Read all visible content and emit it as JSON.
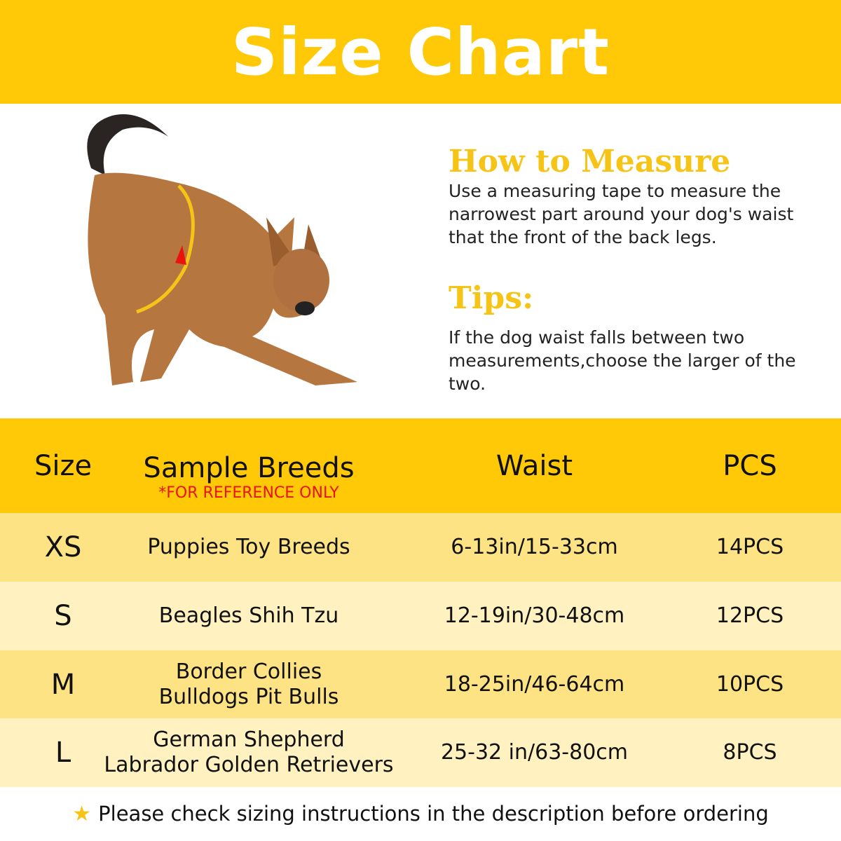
{
  "title": "Size Chart",
  "how_to_measure": {
    "heading": "How to Measure",
    "text": "Use a measuring tape to measure the narrowest part around your dog's waist that the front of the back legs."
  },
  "tips": {
    "heading": "Tips:",
    "text": "If the dog waist falls between two measurements,choose the larger of the two."
  },
  "table": {
    "headers": {
      "size": "Size",
      "breeds": "Sample Breeds",
      "breeds_note": "*FOR REFERENCE ONLY",
      "waist": "Waist",
      "pcs": "PCS"
    },
    "rows": [
      {
        "size": "XS",
        "breeds": [
          "Puppies Toy Breeds"
        ],
        "waist": "6-13in/15-33cm",
        "pcs": "14PCS",
        "color": "#FEE384"
      },
      {
        "size": "S",
        "breeds": [
          "Beagles Shih Tzu"
        ],
        "waist": "12-19in/30-48cm",
        "pcs": "12PCS",
        "color": "#FFF2C0"
      },
      {
        "size": "M",
        "breeds": [
          "Border Collies",
          "Bulldogs Pit Bulls"
        ],
        "waist": "18-25in/46-64cm",
        "pcs": "10PCS",
        "color": "#FEE384"
      },
      {
        "size": "L",
        "breeds": [
          "German Shepherd",
          "Labrador  Golden Retrievers"
        ],
        "waist": "25-32 in/63-80cm",
        "pcs": "8PCS",
        "color": "#FFF2C0"
      }
    ]
  },
  "footer": {
    "icon": "star-icon",
    "text": "Please check sizing instructions in the description before ordering"
  },
  "colors": {
    "accent": "#FFC907",
    "note": "#e8140c"
  }
}
